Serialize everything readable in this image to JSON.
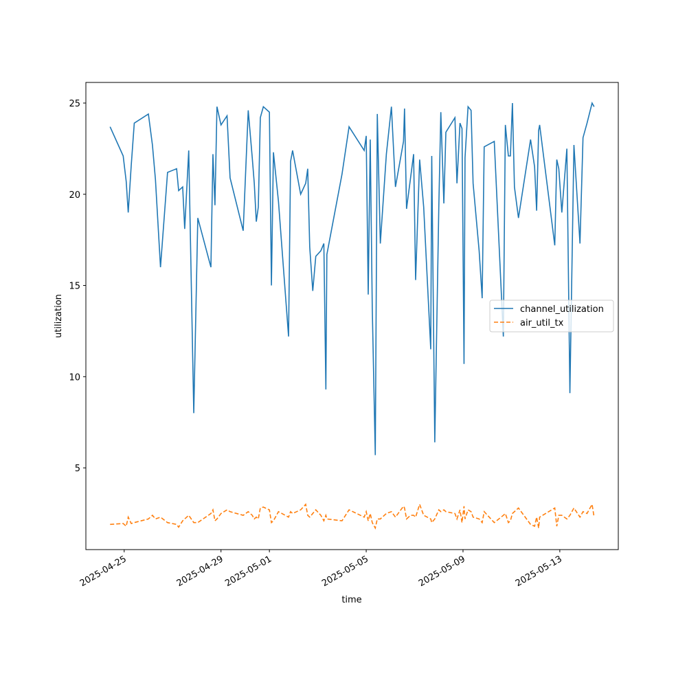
{
  "chart_data": {
    "type": "line",
    "x_label": "time",
    "y_label": "utilization",
    "x": [
      "2025-04-24 10:00",
      "2025-04-24 23:00",
      "2025-04-25 02:00",
      "2025-04-25 04:00",
      "2025-04-25 07:00",
      "2025-04-25 10:00",
      "2025-04-26 00:00",
      "2025-04-26 04:00",
      "2025-04-26 07:00",
      "2025-04-26 12:00",
      "2025-04-26 19:00",
      "2025-04-27 04:00",
      "2025-04-27 06:00",
      "2025-04-27 10:00",
      "2025-04-27 12:00",
      "2025-04-27 16:00",
      "2025-04-27 21:00",
      "2025-04-28 01:00",
      "2025-04-28 14:00",
      "2025-04-28 16:00",
      "2025-04-28 18:00",
      "2025-04-28 20:00",
      "2025-04-29 00:00",
      "2025-04-29 06:00",
      "2025-04-29 09:00",
      "2025-04-29 22:00",
      "2025-04-30 03:00",
      "2025-04-30 07:00",
      "2025-04-30 09:00",
      "2025-04-30 11:00",
      "2025-04-30 13:00",
      "2025-04-30 15:00",
      "2025-04-30 18:00",
      "2025-05-01 00:00",
      "2025-05-01 02:00",
      "2025-05-01 04:00",
      "2025-05-01 09:00",
      "2025-05-01 19:00",
      "2025-05-01 21:00",
      "2025-05-01 23:00",
      "2025-05-02 07:00",
      "2025-05-02 12:00",
      "2025-05-02 14:00",
      "2025-05-02 16:00",
      "2025-05-02 19:00",
      "2025-05-02 22:00",
      "2025-05-03 03:00",
      "2025-05-03 06:00",
      "2025-05-03 08:00",
      "2025-05-03 09:00",
      "2025-05-04 00:00",
      "2025-05-04 07:00",
      "2025-05-04 22:00",
      "2025-05-05 00:00",
      "2025-05-05 02:00",
      "2025-05-05 04:00",
      "2025-05-05 06:00",
      "2025-05-05 09:00",
      "2025-05-05 11:00",
      "2025-05-05 14:00",
      "2025-05-05 20:00",
      "2025-05-06 01:00",
      "2025-05-06 05:00",
      "2025-05-06 13:00",
      "2025-05-06 14:00",
      "2025-05-06 16:00",
      "2025-05-06 20:00",
      "2025-05-06 23:00",
      "2025-05-07 01:00",
      "2025-05-07 05:00",
      "2025-05-07 09:00",
      "2025-05-07 16:00",
      "2025-05-07 17:00",
      "2025-05-07 20:00",
      "2025-05-08 00:00",
      "2025-05-08 02:00",
      "2025-05-08 05:00",
      "2025-05-08 07:00",
      "2025-05-08 16:00",
      "2025-05-08 18:00",
      "2025-05-08 21:00",
      "2025-05-08 23:00",
      "2025-05-09 01:00",
      "2025-05-09 02:00",
      "2025-05-09 05:00",
      "2025-05-09 08:00",
      "2025-05-09 10:00",
      "2025-05-09 16:00",
      "2025-05-09 19:00",
      "2025-05-09 21:00",
      "2025-05-10 07:00",
      "2025-05-10 16:00",
      "2025-05-10 18:00",
      "2025-05-10 21:00",
      "2025-05-10 23:00",
      "2025-05-11 01:00",
      "2025-05-11 03:00",
      "2025-05-11 07:00",
      "2025-05-11 19:00",
      "2025-05-11 23:00",
      "2025-05-12 01:00",
      "2025-05-12 03:00",
      "2025-05-12 04:00",
      "2025-05-12 19:00",
      "2025-05-12 21:00",
      "2025-05-12 23:00",
      "2025-05-13 02:00",
      "2025-05-13 07:00",
      "2025-05-13 10:00",
      "2025-05-13 14:00",
      "2025-05-13 20:00",
      "2025-05-13 23:00",
      "2025-05-14 03:00",
      "2025-05-14 08:00",
      "2025-05-14 10:00"
    ],
    "series": [
      {
        "name": "channel_utilization",
        "color": "#1f77b4",
        "linestyle": "solid",
        "values": [
          23.7,
          22.1,
          20.7,
          19.0,
          21.6,
          23.9,
          24.4,
          22.7,
          20.8,
          16.0,
          21.2,
          21.4,
          20.2,
          20.4,
          18.1,
          22.4,
          8.0,
          18.7,
          16.0,
          22.2,
          19.4,
          24.8,
          23.8,
          24.3,
          20.9,
          18.0,
          24.6,
          22.0,
          20.6,
          18.5,
          19.3,
          24.2,
          24.8,
          24.5,
          15.0,
          22.3,
          19.6,
          12.2,
          21.8,
          22.4,
          20.0,
          20.6,
          21.4,
          17.1,
          14.7,
          16.6,
          16.9,
          17.3,
          9.3,
          16.7,
          21.1,
          23.7,
          22.4,
          23.2,
          14.5,
          23.0,
          13.8,
          5.7,
          24.4,
          17.3,
          22.2,
          24.8,
          20.4,
          22.9,
          24.7,
          19.2,
          20.9,
          22.2,
          15.3,
          21.9,
          19.3,
          11.5,
          22.1,
          6.4,
          19.3,
          24.5,
          19.5,
          23.4,
          24.2,
          20.6,
          23.9,
          23.6,
          10.7,
          22.0,
          24.8,
          24.6,
          20.6,
          16.9,
          14.3,
          22.6,
          22.9,
          12.2,
          23.8,
          22.1,
          22.1,
          25.0,
          20.4,
          18.7,
          23.0,
          21.5,
          19.1,
          23.5,
          23.8,
          17.2,
          21.9,
          21.4,
          19.0,
          22.5,
          9.1,
          22.7,
          17.3,
          23.1,
          23.9,
          25.0,
          24.8
        ]
      },
      {
        "name": "air_util_tx",
        "color": "#ff7f0e",
        "linestyle": "dashed",
        "values": [
          1.9,
          1.95,
          1.8,
          2.3,
          1.95,
          2.0,
          2.2,
          2.4,
          2.2,
          2.3,
          2.0,
          1.9,
          1.75,
          2.1,
          2.2,
          2.4,
          2.0,
          2.0,
          2.5,
          2.7,
          2.1,
          2.2,
          2.5,
          2.7,
          2.6,
          2.4,
          2.6,
          2.4,
          2.2,
          2.3,
          2.2,
          2.8,
          2.85,
          2.7,
          2.0,
          2.1,
          2.6,
          2.3,
          2.6,
          2.5,
          2.7,
          3.0,
          2.4,
          2.3,
          2.5,
          2.7,
          2.4,
          2.1,
          2.4,
          2.2,
          2.1,
          2.7,
          2.3,
          2.6,
          2.1,
          2.5,
          2.0,
          1.7,
          2.2,
          2.2,
          2.5,
          2.6,
          2.3,
          2.9,
          2.8,
          2.2,
          2.4,
          2.4,
          2.3,
          3.0,
          2.4,
          2.2,
          2.0,
          2.2,
          2.7,
          2.6,
          2.7,
          2.6,
          2.5,
          2.2,
          2.7,
          2.0,
          2.9,
          2.2,
          2.7,
          2.6,
          2.3,
          2.2,
          2.0,
          2.6,
          2.0,
          2.4,
          2.5,
          2.0,
          2.1,
          2.5,
          2.6,
          2.8,
          1.9,
          1.8,
          2.3,
          1.7,
          2.3,
          2.8,
          1.8,
          2.4,
          2.4,
          2.2,
          2.4,
          2.8,
          2.3,
          2.6,
          2.5,
          3.0,
          2.3
        ]
      }
    ],
    "xlim": [
      "2025-04-23 10:00",
      "2025-05-15 10:00"
    ],
    "xticks": [
      "2025-04-25",
      "2025-04-29",
      "2025-05-01",
      "2025-05-05",
      "2025-05-09",
      "2025-05-13"
    ],
    "ylim": [
      0.52,
      26.13
    ],
    "yticks": [
      5,
      10,
      15,
      20,
      25
    ],
    "legend": "center right"
  }
}
